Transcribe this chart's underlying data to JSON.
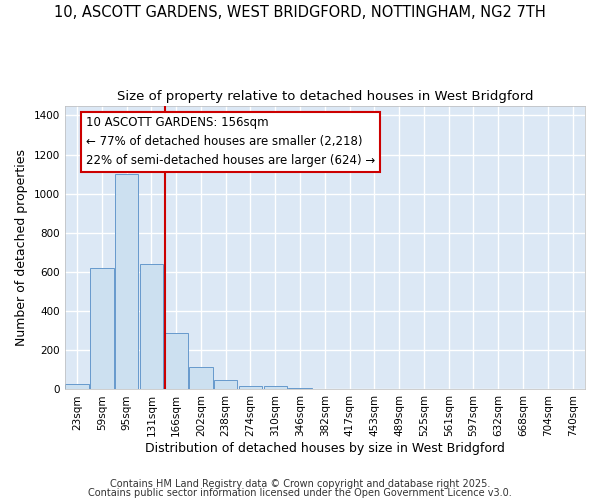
{
  "title_line1": "10, ASCOTT GARDENS, WEST BRIDGFORD, NOTTINGHAM, NG2 7TH",
  "title_line2": "Size of property relative to detached houses in West Bridgford",
  "xlabel": "Distribution of detached houses by size in West Bridgford",
  "ylabel": "Number of detached properties",
  "bin_labels": [
    "23sqm",
    "59sqm",
    "95sqm",
    "131sqm",
    "166sqm",
    "202sqm",
    "238sqm",
    "274sqm",
    "310sqm",
    "346sqm",
    "382sqm",
    "417sqm",
    "453sqm",
    "489sqm",
    "525sqm",
    "561sqm",
    "597sqm",
    "632sqm",
    "668sqm",
    "704sqm",
    "740sqm"
  ],
  "bar_heights": [
    30,
    620,
    1100,
    640,
    290,
    115,
    50,
    20,
    20,
    5,
    0,
    0,
    0,
    0,
    0,
    0,
    0,
    0,
    0,
    0,
    0
  ],
  "bar_color": "#cce0f0",
  "bar_edgecolor": "#6699cc",
  "property_size_bin": 4,
  "vline_color": "#cc0000",
  "annotation_text": "10 ASCOTT GARDENS: 156sqm\n← 77% of detached houses are smaller (2,218)\n22% of semi-detached houses are larger (624) →",
  "annotation_box_edgecolor": "#cc0000",
  "annotation_box_facecolor": "#ffffff",
  "ylim": [
    0,
    1450
  ],
  "yticks": [
    0,
    200,
    400,
    600,
    800,
    1000,
    1200,
    1400
  ],
  "plot_bg_color": "#dce8f5",
  "fig_bg_color": "#ffffff",
  "grid_color": "#ffffff",
  "footer_line1": "Contains HM Land Registry data © Crown copyright and database right 2025.",
  "footer_line2": "Contains public sector information licensed under the Open Government Licence v3.0.",
  "title_fontsize": 10.5,
  "subtitle_fontsize": 9.5,
  "axis_label_fontsize": 9,
  "tick_fontsize": 7.5,
  "annotation_fontsize": 8.5,
  "footer_fontsize": 7
}
